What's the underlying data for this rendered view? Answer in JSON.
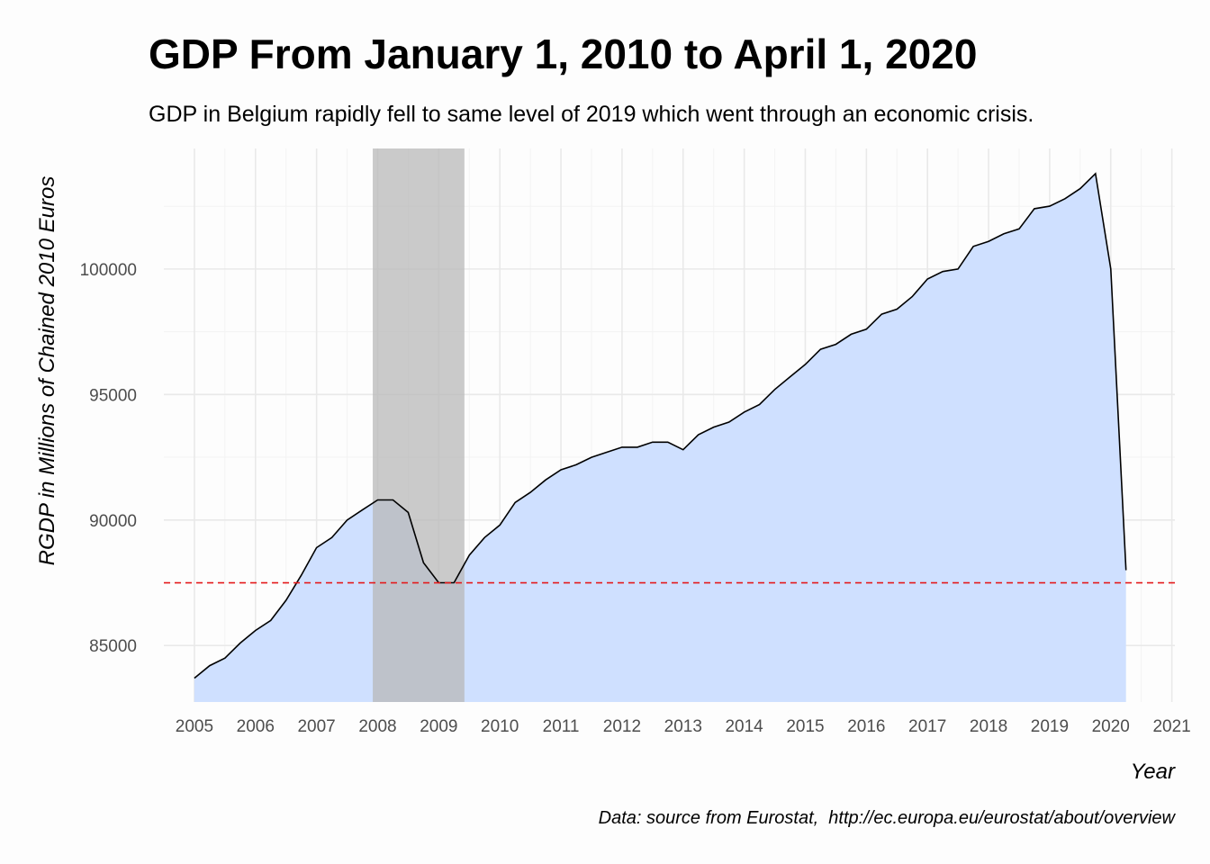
{
  "chart_data": {
    "type": "area",
    "title": "GDP From January 1, 2010 to April 1, 2020",
    "subtitle": "GDP in Belgium rapidly fell to same level of 2019 which went through an economic crisis.",
    "xlabel": "Year",
    "ylabel": "RGDP in Millions of Chained 2010 Euros",
    "caption": "Data: source from Eurostat,  http://ec.europa.eu/eurostat/about/overview",
    "xlim": [
      2004.5,
      2021.05
    ],
    "ylim": [
      82750,
      104800
    ],
    "x_ticks": [
      2005,
      2006,
      2007,
      2008,
      2009,
      2010,
      2011,
      2012,
      2013,
      2014,
      2015,
      2016,
      2017,
      2018,
      2019,
      2020,
      2021
    ],
    "y_ticks": [
      85000,
      90000,
      95000,
      100000
    ],
    "grid": true,
    "recession_band": {
      "start": 2007.92,
      "end": 2009.42,
      "color": "#b8b8b8"
    },
    "reference_line": {
      "y": 87500,
      "color": "#e41a1c",
      "style": "dashed"
    },
    "colors": {
      "area_fill": "#cfe0ff",
      "line": "#000000"
    },
    "series": [
      {
        "x": [
          2005.0,
          2005.25,
          2005.5,
          2005.75,
          2006.0,
          2006.25,
          2006.5,
          2006.75,
          2007.0,
          2007.25,
          2007.5,
          2007.75,
          2008.0,
          2008.25,
          2008.5,
          2008.75,
          2009.0,
          2009.25,
          2009.5,
          2009.75,
          2010.0,
          2010.25,
          2010.5,
          2010.75,
          2011.0,
          2011.25,
          2011.5,
          2011.75,
          2012.0,
          2012.25,
          2012.5,
          2012.75,
          2013.0,
          2013.25,
          2013.5,
          2013.75,
          2014.0,
          2014.25,
          2014.5,
          2014.75,
          2015.0,
          2015.25,
          2015.5,
          2015.75,
          2016.0,
          2016.25,
          2016.5,
          2016.75,
          2017.0,
          2017.25,
          2017.5,
          2017.75,
          2018.0,
          2018.25,
          2018.5,
          2018.75,
          2019.0,
          2019.25,
          2019.5,
          2019.75,
          2020.0,
          2020.25
        ],
        "values": [
          83700,
          84200,
          84500,
          85100,
          85600,
          86000,
          86800,
          87800,
          88900,
          89300,
          90000,
          90400,
          90800,
          90800,
          90300,
          88300,
          87500,
          87500,
          88600,
          89300,
          89800,
          90700,
          91100,
          91600,
          92000,
          92200,
          92500,
          92700,
          92900,
          92900,
          93100,
          93100,
          92800,
          93400,
          93700,
          93900,
          94300,
          94600,
          95200,
          95700,
          96200,
          96800,
          97000,
          97400,
          97600,
          98200,
          98400,
          98900,
          99600,
          99900,
          100000,
          100900,
          101100,
          101400,
          101600,
          102400,
          102500,
          102800,
          103200,
          103800,
          100000,
          88000
        ]
      }
    ]
  }
}
